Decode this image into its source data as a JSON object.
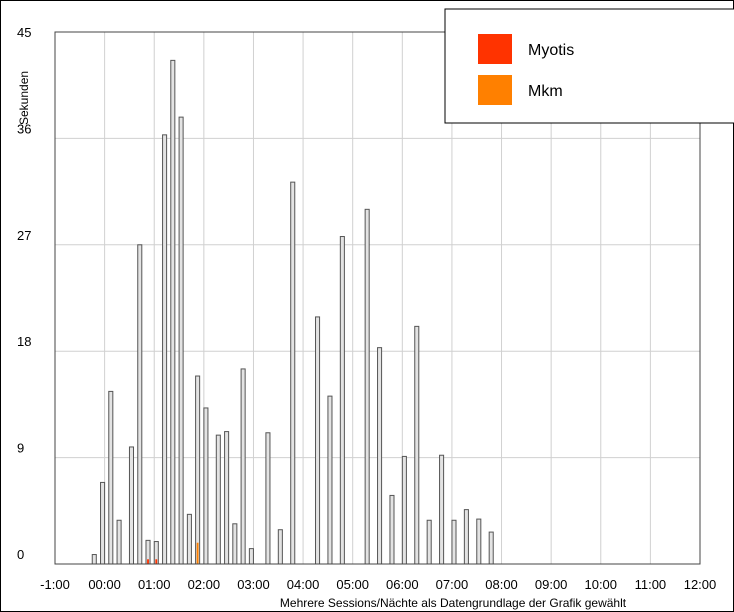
{
  "chart_data": {
    "type": "bar",
    "ylabel": "Sekunden",
    "xlabel": "Mehrere Sessions/Nächte als Datengrundlage der Grafik gewählt",
    "ylim": [
      0,
      45
    ],
    "xlim": [
      -1,
      12
    ],
    "grid": true,
    "legend_position": "top-right",
    "y_ticks": [
      "0",
      "9",
      "18",
      "27",
      "36",
      "45"
    ],
    "x_ticks": [
      "-1:00",
      "00:00",
      "01:00",
      "02:00",
      "03:00",
      "04:00",
      "05:00",
      "06:00",
      "07:00",
      "08:00",
      "09:00",
      "10:00",
      "11:00",
      "12:00"
    ],
    "bin_width_hours": 0.25,
    "series": [
      {
        "name": "",
        "color": "#e3e3e3",
        "x": [
          -0.25,
          -0.083,
          0.083,
          0.25,
          0.5,
          0.667,
          0.833,
          1.0,
          1.167,
          1.333,
          1.5,
          1.667,
          1.833,
          2.0,
          2.25,
          2.417,
          2.583,
          2.75,
          2.917,
          3.25,
          3.5,
          3.75,
          4.25,
          4.5,
          4.75,
          5.25,
          5.5,
          5.75,
          6.0,
          6.25,
          6.5,
          6.75,
          7.0,
          7.25,
          7.5,
          7.75,
          8.0,
          8.25,
          8.5
        ],
        "values": [
          0.8,
          6.9,
          14.6,
          3.7,
          9.9,
          27.0,
          2.0,
          1.9,
          36.3,
          42.6,
          37.8,
          4.2,
          15.9,
          13.2,
          10.9,
          11.2,
          3.4,
          16.5,
          1.3,
          11.1,
          2.9,
          32.3,
          20.9,
          14.2,
          27.7,
          30.0,
          18.3,
          5.8,
          9.1,
          20.1,
          3.7,
          9.2,
          3.7,
          4.6,
          3.8,
          2.7,
          0,
          0,
          0
        ]
      },
      {
        "name": "Myotis",
        "color": "#ff3300",
        "x": [
          0.833,
          1.0
        ],
        "values": [
          0.4,
          0.4
        ]
      },
      {
        "name": "Mkm",
        "color": "#ff8000",
        "x": [
          1.833
        ],
        "values": [
          1.8
        ]
      }
    ]
  }
}
